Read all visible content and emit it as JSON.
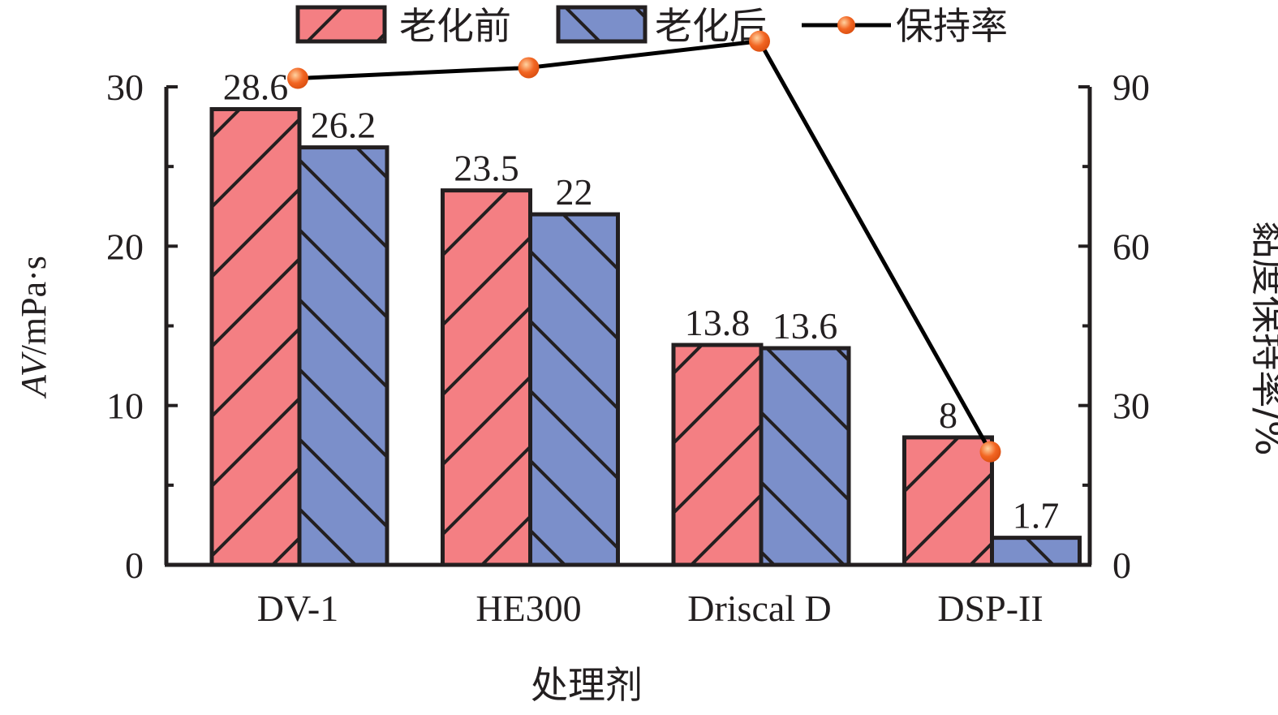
{
  "chart_data": {
    "type": "bar",
    "xlabel": "处理剂",
    "ylabel_italic": "AV",
    "ylabel_unit": "/mPa·s",
    "y2label": "黏度保持率/%",
    "categories": [
      "DV-1",
      "HE300",
      "Driscal D",
      "DSP-II"
    ],
    "ylim": [
      0,
      30
    ],
    "y_ticks": [
      "0",
      "10",
      "20",
      "30"
    ],
    "y2lim": [
      0,
      90
    ],
    "y2_ticks": [
      "0",
      "30",
      "60",
      "90"
    ],
    "series": [
      {
        "name": "老化前",
        "values": [
          28.6,
          23.5,
          13.8,
          8
        ],
        "labels": [
          "28.6",
          "23.5",
          "13.8",
          "8"
        ],
        "color": "#f47f83",
        "pattern": "forward-hatch"
      },
      {
        "name": "老化后",
        "values": [
          26.2,
          22,
          13.6,
          1.7
        ],
        "labels": [
          "26.2",
          "22",
          "13.6",
          "1.7"
        ],
        "color": "#7b8fca",
        "pattern": "back-hatch"
      }
    ],
    "line_series": {
      "name": "保持率",
      "axis": "right",
      "values": [
        91.6,
        93.6,
        98.6,
        21.3
      ],
      "line_color": "#000000",
      "marker_color": "#f26522"
    },
    "legend_position": "top",
    "grid": false
  }
}
